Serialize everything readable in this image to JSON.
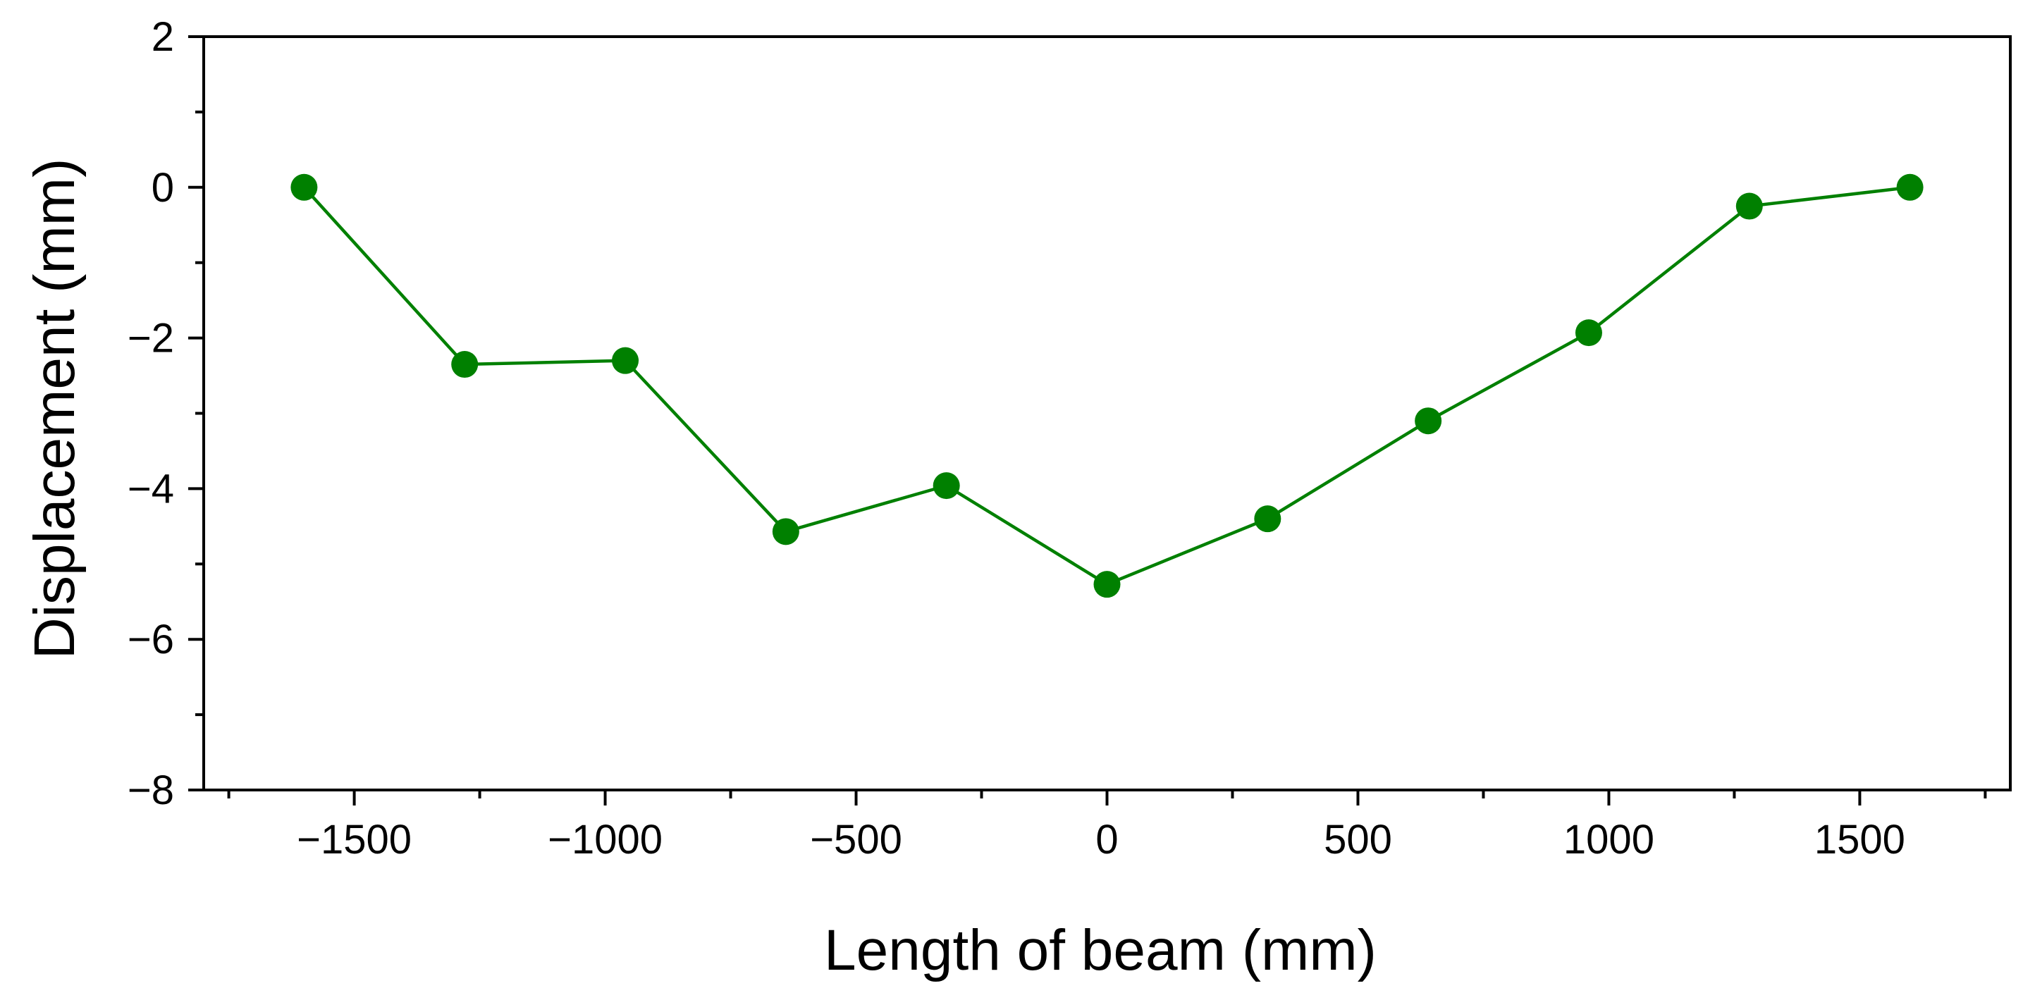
{
  "chart_data": {
    "type": "line",
    "title": "",
    "xlabel": "Length of beam (mm)",
    "ylabel": "Displacement (mm)",
    "xlim": [
      -1800,
      1800
    ],
    "ylim": [
      -8,
      2
    ],
    "x_ticks": [
      -1500,
      -1000,
      -500,
      0,
      500,
      1000,
      1500
    ],
    "x_tick_labels": [
      "−1500",
      "−1000",
      "−500",
      "0",
      "500",
      "1000",
      "1500"
    ],
    "y_ticks": [
      -8,
      -6,
      -4,
      -2,
      0,
      2
    ],
    "y_tick_labels": [
      "−8",
      "−6",
      "−4",
      "−2",
      "0",
      "2"
    ],
    "grid": false,
    "legend": "none",
    "series": [
      {
        "color": "#008000",
        "marker": "circle",
        "x": [
          -1600,
          -1280,
          -960,
          -640,
          -320,
          0,
          320,
          640,
          960,
          1280,
          1600
        ],
        "y": [
          0,
          -2.35,
          -2.3,
          -4.57,
          -3.96,
          -5.27,
          -4.4,
          -3.1,
          -1.93,
          -0.25,
          0
        ]
      }
    ]
  }
}
